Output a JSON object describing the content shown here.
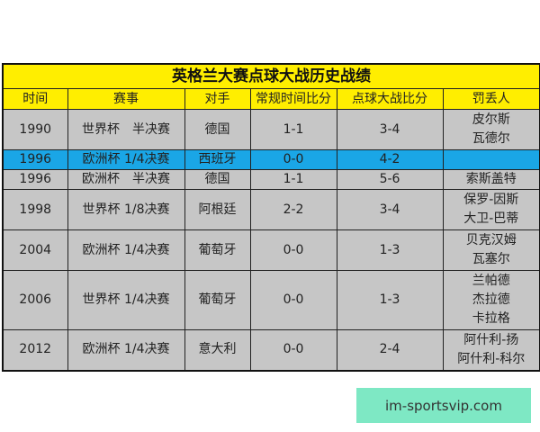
{
  "title": "英格兰大赛点球大战历史战绩",
  "headers": [
    "时间",
    "赛事",
    "对手",
    "常规时间比分",
    "点球大战比分",
    "罚丢人"
  ],
  "rows": [
    {
      "year": "1990",
      "event": "世界杯　半决赛",
      "opponent": "德国",
      "regular": "1-1",
      "penalty": "3-4",
      "missed": [
        "皮尔斯",
        "瓦德尔"
      ],
      "highlight": false
    },
    {
      "year": "1996",
      "event": "欧洲杯 1/4决赛",
      "opponent": "西班牙",
      "regular": "0-0",
      "penalty": "4-2",
      "missed": [],
      "highlight": true
    },
    {
      "year": "1996",
      "event": "欧洲杯　半决赛",
      "opponent": "德国",
      "regular": "1-1",
      "penalty": "5-6",
      "missed": [
        "索斯盖特"
      ],
      "highlight": false
    },
    {
      "year": "1998",
      "event": "世界杯 1/8决赛",
      "opponent": "阿根廷",
      "regular": "2-2",
      "penalty": "3-4",
      "missed": [
        "保罗-因斯",
        "大卫-巴蒂"
      ],
      "highlight": false
    },
    {
      "year": "2004",
      "event": "欧洲杯 1/4决赛",
      "opponent": "葡萄牙",
      "regular": "0-0",
      "penalty": "1-3",
      "missed": [
        "贝克汉姆",
        "瓦塞尔"
      ],
      "highlight": false
    },
    {
      "year": "2006",
      "event": "世界杯 1/4决赛",
      "opponent": "葡萄牙",
      "regular": "0-0",
      "penalty": "1-3",
      "missed": [
        "兰帕德",
        "杰拉德",
        "卡拉格"
      ],
      "highlight": false
    },
    {
      "year": "2012",
      "event": "欧洲杯 1/4决赛",
      "opponent": "意大利",
      "regular": "0-0",
      "penalty": "2-4",
      "missed": [
        "阿什利-扬",
        "阿什利-科尔"
      ],
      "highlight": false
    }
  ],
  "colors": {
    "header_bg": "#ffee00",
    "row_bg": "#c6c6c6",
    "highlight_bg": "#1aa6e6",
    "watermark_bg": "#7ee8c4"
  },
  "watermark": "im-sportsvip.com"
}
